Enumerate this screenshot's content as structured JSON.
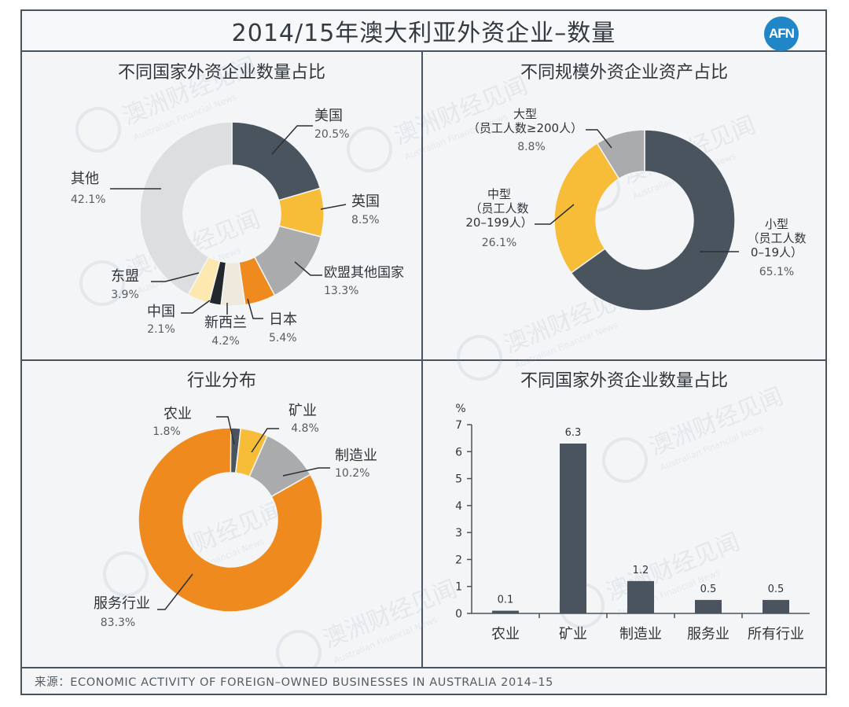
{
  "title": "2014/15年澳大利亚外资企业–数量",
  "logo_text": "AFN",
  "watermark": {
    "cn": "澳洲财经见闻",
    "en": "Australian Financial News"
  },
  "footer": "来源：ECONOMIC ACTIVITY OF FOREIGN–OWNED BUSINESSES IN AUSTRALIA 2014–15",
  "colors": {
    "dark": "#4a545e",
    "yellow": "#f7bd38",
    "gray": "#a9abad",
    "orange": "#ef8a1f",
    "light": "#dcdedf",
    "cream": "#efe9db",
    "black": "#23282d",
    "accent": "#1f86c7"
  },
  "chart_data": [
    {
      "type": "pie",
      "title": "不同国家外资企业数量占比",
      "slices": [
        {
          "label": "美国",
          "value": "20.5%",
          "pct": 20.5,
          "color": "#4a545e"
        },
        {
          "label": "英国",
          "value": "8.5%",
          "pct": 8.5,
          "color": "#f7bd38"
        },
        {
          "label": "欧盟其他国家",
          "value": "13.3%",
          "pct": 13.3,
          "color": "#a9abad"
        },
        {
          "label": "日本",
          "value": "5.4%",
          "pct": 5.4,
          "color": "#ef8a1f"
        },
        {
          "label": "新西兰",
          "value": "4.2%",
          "pct": 4.2,
          "color": "#efe9db"
        },
        {
          "label": "中国",
          "value": "2.1%",
          "pct": 2.1,
          "color": "#23282d"
        },
        {
          "label": "东盟",
          "value": "3.9%",
          "pct": 3.9,
          "color": "#fde9b0"
        },
        {
          "label": "其他",
          "value": "42.1%",
          "pct": 42.1,
          "color": "#dcdedf"
        }
      ]
    },
    {
      "type": "pie",
      "title": "不同规模外资企业资产占比",
      "slices": [
        {
          "label": "小型\n（员工人数\n0–19人）",
          "value": "65.1%",
          "pct": 65.1,
          "color": "#4a545e"
        },
        {
          "label": "中型\n（员工人数\n20–199人）",
          "value": "26.1%",
          "pct": 26.1,
          "color": "#f7bd38"
        },
        {
          "label": "大型\n（员工人数≥200人）",
          "value": "8.8%",
          "pct": 8.8,
          "color": "#a9abad"
        }
      ]
    },
    {
      "type": "pie",
      "title": "行业分布",
      "slices": [
        {
          "label": "农业",
          "value": "1.8%",
          "pct": 1.8,
          "color": "#4a545e"
        },
        {
          "label": "矿业",
          "value": "4.8%",
          "pct": 4.8,
          "color": "#f7bd38"
        },
        {
          "label": "制造业",
          "value": "10.2%",
          "pct": 10.2,
          "color": "#a9abad"
        },
        {
          "label": "服务行业",
          "value": "83.3%",
          "pct": 83.3,
          "color": "#ef8a1f"
        }
      ]
    },
    {
      "type": "bar",
      "title": "不同国家外资企业数量占比",
      "ylabel": "%",
      "categories": [
        "农业",
        "矿业",
        "制造业",
        "服务业",
        "所有行业"
      ],
      "values": [
        0.1,
        6.3,
        1.2,
        0.5,
        0.5
      ],
      "value_labels": [
        "0.1",
        "6.3",
        "1.2",
        "0.5",
        "0.5"
      ],
      "yticks": [
        "0",
        "1",
        "2",
        "3",
        "4",
        "5",
        "6",
        "7"
      ],
      "ylim": [
        0,
        7
      ]
    }
  ]
}
